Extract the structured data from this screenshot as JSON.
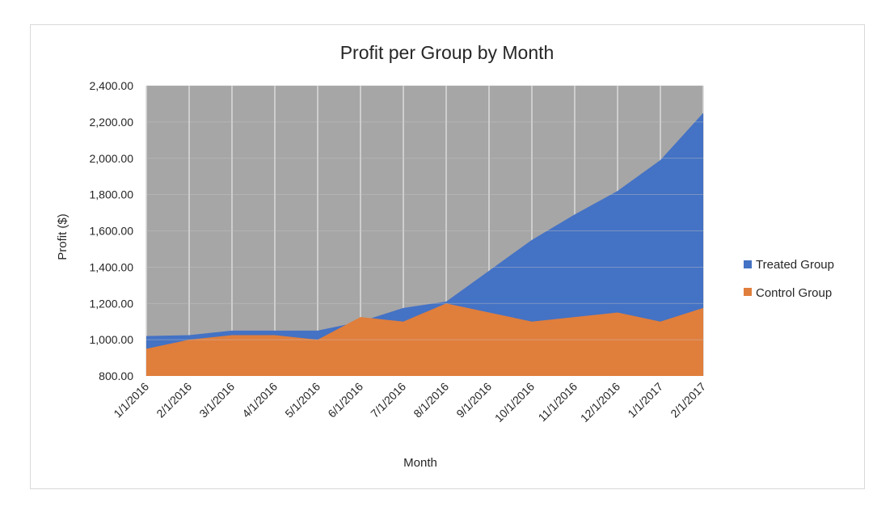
{
  "chart_data": {
    "type": "area",
    "title": "Profit per Group by Month",
    "xlabel": "Month",
    "ylabel": "Profit ($)",
    "ylim": [
      800,
      2400
    ],
    "y_tick_step": 200,
    "y_tick_labels": [
      "800.00",
      "1,000.00",
      "1,200.00",
      "1,400.00",
      "1,600.00",
      "1,800.00",
      "2,000.00",
      "2,200.00",
      "2,400.00"
    ],
    "categories": [
      "1/1/2016",
      "2/1/2016",
      "3/1/2016",
      "4/1/2016",
      "5/1/2016",
      "6/1/2016",
      "7/1/2016",
      "8/1/2016",
      "9/1/2016",
      "10/1/2016",
      "11/1/2016",
      "12/1/2016",
      "1/1/2017",
      "2/1/2017"
    ],
    "grid": true,
    "legend_position": "right",
    "plot_background": "#a6a6a6",
    "series": [
      {
        "name": "Treated Group",
        "color": "#4472c4",
        "values": [
          1020,
          1025,
          1050,
          1050,
          1050,
          1100,
          1175,
          1210,
          1380,
          1550,
          1690,
          1820,
          1990,
          2250
        ]
      },
      {
        "name": "Control Group",
        "color": "#e07e3c",
        "values": [
          950,
          1000,
          1025,
          1025,
          1000,
          1125,
          1100,
          1200,
          1150,
          1100,
          1125,
          1150,
          1100,
          1175
        ]
      }
    ]
  }
}
